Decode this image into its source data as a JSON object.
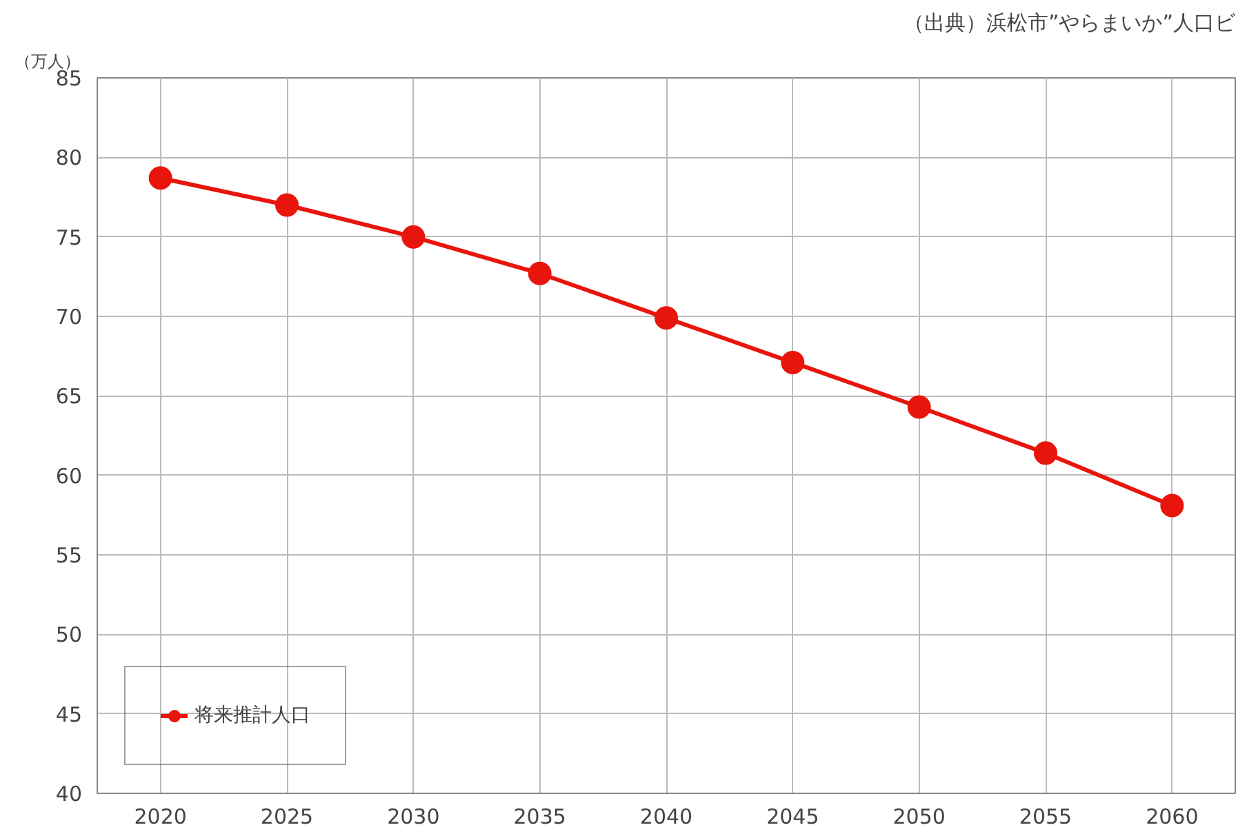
{
  "chart_data": {
    "type": "line",
    "ylabel": "（万人）",
    "annotations": [
      "（出典）浜松市”やらまいか”人口ビ"
    ],
    "x": [
      2020,
      2025,
      2030,
      2035,
      2040,
      2045,
      2050,
      2055,
      2060
    ],
    "series": [
      {
        "name": "将来推計人口",
        "color": "#e8150d",
        "values": [
          78.7,
          77.0,
          75.0,
          72.7,
          69.9,
          67.1,
          64.3,
          61.4,
          58.1
        ]
      }
    ],
    "xlim": [
      2017.5,
      2062.5
    ],
    "xticks": [
      2020,
      2025,
      2030,
      2035,
      2040,
      2045,
      2050,
      2055,
      2060
    ],
    "ylim": [
      40,
      85
    ],
    "yticks": [
      40,
      45,
      50,
      55,
      60,
      65,
      70,
      75,
      80,
      85
    ],
    "grid": true,
    "legend": "bottom left",
    "marker": "circle",
    "line_style": "solid"
  }
}
